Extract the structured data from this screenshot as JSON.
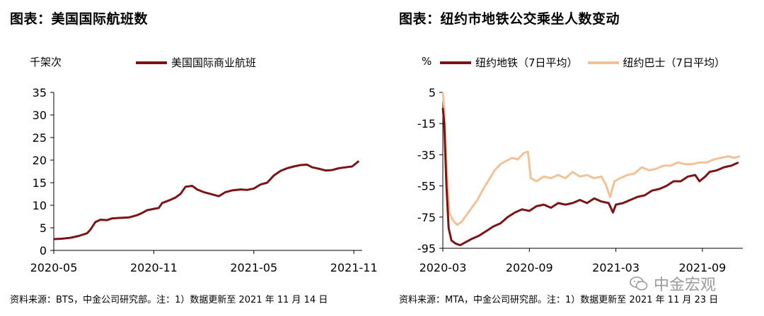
{
  "panels": [
    {
      "title": "图表：美国国际航班数",
      "unit": "千架次",
      "source": "资料来源：BTS，中金公司研究部。注：1）数据更新至 2021 年 11 月 14 日"
    },
    {
      "title": "图表：纽约市地铁公交乘坐人数变动",
      "unit": "%",
      "source": "资料来源：MTA，中金公司研究部。注：1）数据更新至 2021 年 11 月 23 日"
    }
  ],
  "watermark": "中金宏观",
  "chart_data": [
    {
      "type": "line",
      "ylim": [
        0,
        35
      ],
      "yticks": [
        0,
        5,
        10,
        15,
        20,
        25,
        30,
        35
      ],
      "x_tick_labels": [
        "2020-05",
        "2020-11",
        "2021-05",
        "2021-11"
      ],
      "x_tick_months": [
        0,
        6,
        12,
        18
      ],
      "xlim_months": [
        0,
        18.5
      ],
      "grid": false,
      "legend_position": "top",
      "series": [
        {
          "name": "美国国际商业航班",
          "color": "#7b1416",
          "points": [
            [
              0.0,
              2.5
            ],
            [
              0.5,
              2.6
            ],
            [
              1.0,
              2.8
            ],
            [
              1.5,
              3.2
            ],
            [
              2.0,
              3.8
            ],
            [
              2.2,
              4.6
            ],
            [
              2.5,
              6.3
            ],
            [
              2.8,
              6.8
            ],
            [
              3.2,
              6.7
            ],
            [
              3.5,
              7.1
            ],
            [
              4.0,
              7.2
            ],
            [
              4.5,
              7.3
            ],
            [
              5.0,
              7.8
            ],
            [
              5.3,
              8.3
            ],
            [
              5.6,
              8.9
            ],
            [
              6.0,
              9.2
            ],
            [
              6.3,
              9.4
            ],
            [
              6.5,
              10.5
            ],
            [
              7.0,
              11.2
            ],
            [
              7.3,
              11.7
            ],
            [
              7.6,
              12.5
            ],
            [
              7.9,
              14.1
            ],
            [
              8.3,
              14.3
            ],
            [
              8.6,
              13.5
            ],
            [
              9.0,
              12.9
            ],
            [
              9.5,
              12.4
            ],
            [
              9.9,
              12.0
            ],
            [
              10.3,
              12.9
            ],
            [
              10.7,
              13.3
            ],
            [
              11.2,
              13.5
            ],
            [
              11.6,
              13.4
            ],
            [
              12.0,
              13.7
            ],
            [
              12.4,
              14.6
            ],
            [
              12.8,
              15.0
            ],
            [
              13.2,
              16.6
            ],
            [
              13.6,
              17.6
            ],
            [
              14.0,
              18.2
            ],
            [
              14.4,
              18.6
            ],
            [
              14.8,
              18.9
            ],
            [
              15.2,
              19.0
            ],
            [
              15.5,
              18.4
            ],
            [
              15.9,
              18.1
            ],
            [
              16.3,
              17.7
            ],
            [
              16.7,
              17.8
            ],
            [
              17.1,
              18.2
            ],
            [
              17.5,
              18.4
            ],
            [
              17.9,
              18.6
            ],
            [
              18.3,
              19.8
            ]
          ]
        }
      ]
    },
    {
      "type": "line",
      "ylim": [
        -95,
        5
      ],
      "yticks": [
        5,
        -15,
        -35,
        -55,
        -75,
        -95
      ],
      "x_tick_labels": [
        "2020-03",
        "2020-09",
        "2021-03",
        "2021-09"
      ],
      "x_tick_months": [
        0,
        6,
        12,
        18
      ],
      "xlim_months": [
        0,
        20.8
      ],
      "grid": false,
      "legend_position": "top",
      "series": [
        {
          "name": "纽约地铁（7日平均）",
          "color": "#7b1416",
          "points": [
            [
              0.0,
              -5
            ],
            [
              0.1,
              -15
            ],
            [
              0.25,
              -55
            ],
            [
              0.4,
              -82
            ],
            [
              0.6,
              -90
            ],
            [
              0.9,
              -92
            ],
            [
              1.2,
              -93
            ],
            [
              1.6,
              -91
            ],
            [
              2.0,
              -89
            ],
            [
              2.5,
              -87
            ],
            [
              3.0,
              -84
            ],
            [
              3.5,
              -81
            ],
            [
              4.0,
              -79
            ],
            [
              4.5,
              -75
            ],
            [
              5.0,
              -72
            ],
            [
              5.5,
              -70
            ],
            [
              6.0,
              -71
            ],
            [
              6.5,
              -68
            ],
            [
              7.0,
              -67
            ],
            [
              7.5,
              -69
            ],
            [
              8.0,
              -66
            ],
            [
              8.5,
              -67
            ],
            [
              9.0,
              -66
            ],
            [
              9.5,
              -64
            ],
            [
              10.0,
              -66
            ],
            [
              10.5,
              -63
            ],
            [
              11.0,
              -65
            ],
            [
              11.5,
              -66
            ],
            [
              11.8,
              -72
            ],
            [
              12.0,
              -67
            ],
            [
              12.5,
              -66
            ],
            [
              13.0,
              -64
            ],
            [
              13.5,
              -62
            ],
            [
              14.0,
              -61
            ],
            [
              14.5,
              -58
            ],
            [
              15.0,
              -57
            ],
            [
              15.5,
              -55
            ],
            [
              16.0,
              -52
            ],
            [
              16.5,
              -52
            ],
            [
              17.0,
              -49
            ],
            [
              17.5,
              -48
            ],
            [
              17.8,
              -52
            ],
            [
              18.2,
              -49
            ],
            [
              18.5,
              -46
            ],
            [
              19.0,
              -45
            ],
            [
              19.5,
              -43
            ],
            [
              20.0,
              -42
            ],
            [
              20.5,
              -40
            ]
          ]
        },
        {
          "name": "纽约巴士（7日平均）",
          "color": "#f3c196",
          "points": [
            [
              0.0,
              5
            ],
            [
              0.1,
              -5
            ],
            [
              0.25,
              -40
            ],
            [
              0.45,
              -72
            ],
            [
              0.7,
              -77
            ],
            [
              1.0,
              -80
            ],
            [
              1.3,
              -78
            ],
            [
              1.7,
              -73
            ],
            [
              2.0,
              -69
            ],
            [
              2.4,
              -64
            ],
            [
              2.8,
              -57
            ],
            [
              3.2,
              -51
            ],
            [
              3.6,
              -45
            ],
            [
              4.0,
              -41
            ],
            [
              4.4,
              -39
            ],
            [
              4.8,
              -37
            ],
            [
              5.2,
              -38
            ],
            [
              5.6,
              -34
            ],
            [
              5.9,
              -33
            ],
            [
              6.1,
              -50
            ],
            [
              6.5,
              -52
            ],
            [
              7.0,
              -49
            ],
            [
              7.5,
              -50
            ],
            [
              8.0,
              -48
            ],
            [
              8.5,
              -50
            ],
            [
              9.0,
              -46
            ],
            [
              9.5,
              -49
            ],
            [
              10.0,
              -48
            ],
            [
              10.5,
              -50
            ],
            [
              11.0,
              -49
            ],
            [
              11.3,
              -54
            ],
            [
              11.6,
              -62
            ],
            [
              11.9,
              -52
            ],
            [
              12.3,
              -50
            ],
            [
              12.8,
              -48
            ],
            [
              13.3,
              -47
            ],
            [
              13.8,
              -43
            ],
            [
              14.3,
              -45
            ],
            [
              14.8,
              -44
            ],
            [
              15.3,
              -42
            ],
            [
              15.8,
              -42
            ],
            [
              16.3,
              -40
            ],
            [
              16.8,
              -41
            ],
            [
              17.3,
              -41
            ],
            [
              17.8,
              -40
            ],
            [
              18.3,
              -40
            ],
            [
              18.8,
              -38
            ],
            [
              19.3,
              -37
            ],
            [
              19.8,
              -36
            ],
            [
              20.2,
              -37
            ],
            [
              20.6,
              -36
            ]
          ]
        }
      ]
    }
  ]
}
